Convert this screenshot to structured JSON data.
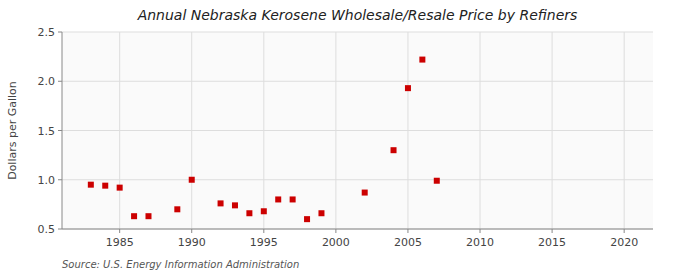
{
  "chart_data": {
    "type": "scatter",
    "title": "Annual Nebraska Kerosene Wholesale/Resale Price by Refiners",
    "ylabel": "Dollars per Gallon",
    "annotations": [
      "Source: U.S. Energy Information Administration"
    ],
    "x": [
      1983,
      1984,
      1985,
      1986,
      1987,
      1989,
      1990,
      1992,
      1993,
      1994,
      1995,
      1996,
      1997,
      1998,
      1999,
      2002,
      2004,
      2005,
      2006,
      2007
    ],
    "values": [
      0.95,
      0.94,
      0.92,
      0.63,
      0.63,
      0.7,
      1.0,
      0.76,
      0.74,
      0.66,
      0.68,
      0.8,
      0.8,
      0.6,
      0.66,
      0.87,
      1.3,
      1.93,
      2.22,
      0.99
    ],
    "color": "#cc0000",
    "marker": "square",
    "xlim": [
      1981,
      2022
    ],
    "ylim": [
      0.5,
      2.5
    ],
    "xticks": [
      1985,
      1990,
      1995,
      2000,
      2005,
      2010,
      2015,
      2020
    ],
    "yticks": [
      0.5,
      {
        "value": 1.0,
        "label": "1.0"
      },
      1.5,
      {
        "value": 2.0,
        "label": "2.0"
      },
      2.5
    ],
    "grid": true
  }
}
